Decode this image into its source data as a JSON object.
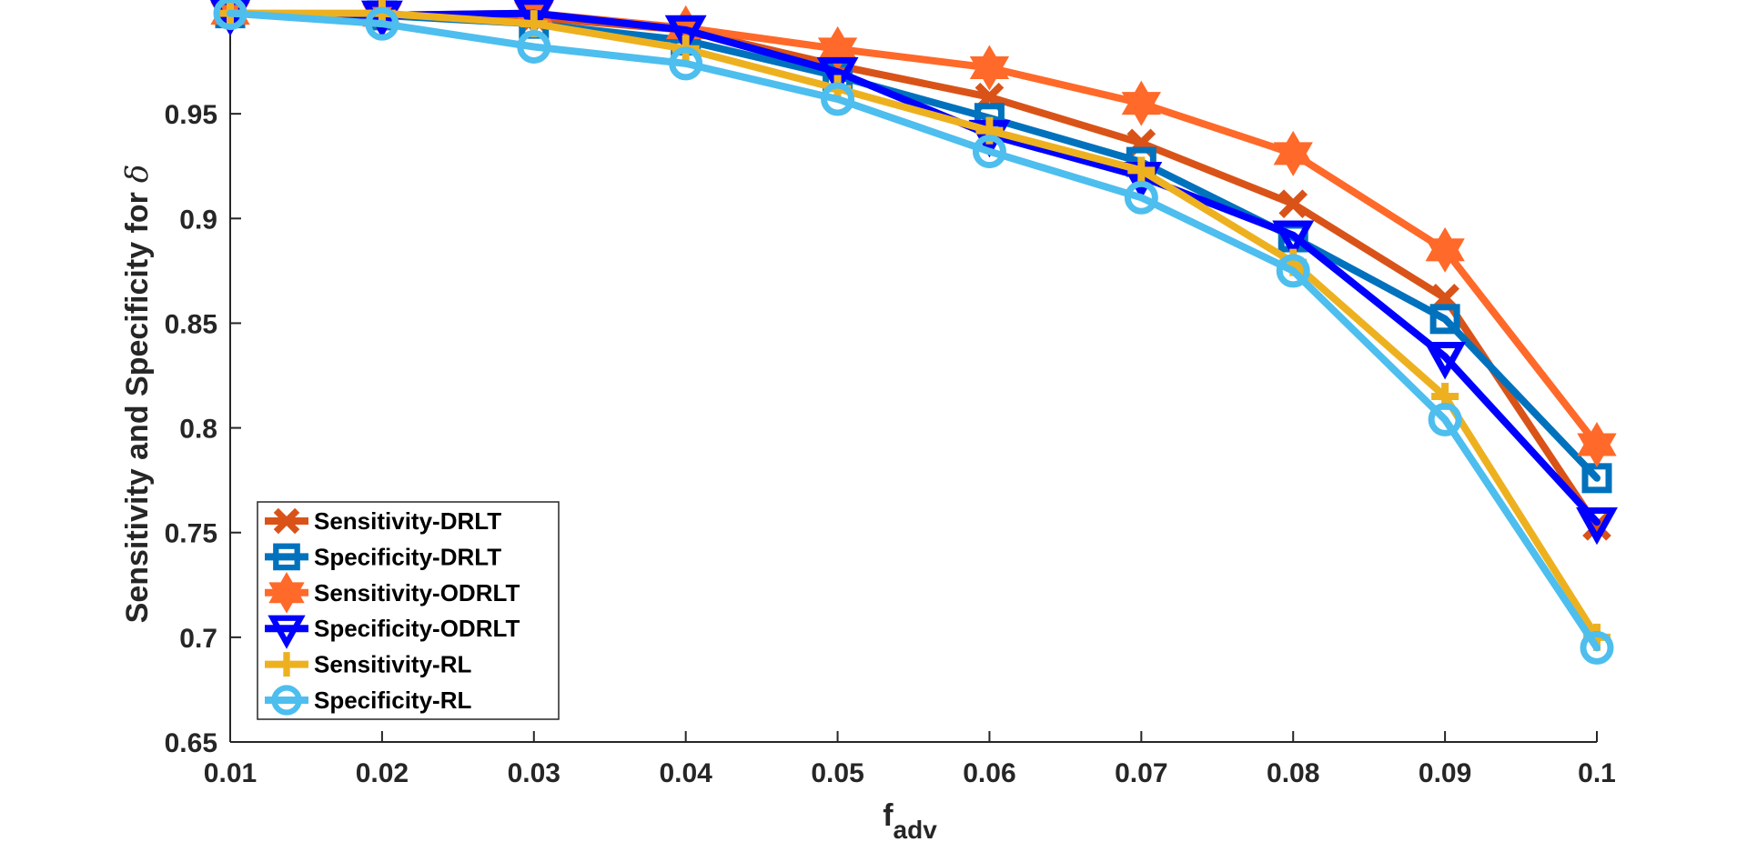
{
  "chart_data": {
    "type": "line",
    "title": "",
    "xlabel": "f",
    "xlabel_sub": "adv",
    "ylabel": "Sensitivity and Specificity for",
    "ylabel_symbol": "δ",
    "x": [
      0.01,
      0.02,
      0.03,
      0.04,
      0.05,
      0.06,
      0.07,
      0.08,
      0.09,
      0.1
    ],
    "xlim": [
      0.01,
      0.1
    ],
    "ylim": [
      0.65,
      1.0
    ],
    "xticks": [
      "0.01",
      "0.02",
      "0.03",
      "0.04",
      "0.05",
      "0.06",
      "0.07",
      "0.08",
      "0.09",
      "0.1"
    ],
    "yticks": [
      "0.65",
      "0.7",
      "0.75",
      "0.8",
      "0.85",
      "0.9",
      "0.95"
    ],
    "ytick_values": [
      0.65,
      0.7,
      0.75,
      0.8,
      0.85,
      0.9,
      0.95
    ],
    "grid": false,
    "legend_position": "bottom-left",
    "series": [
      {
        "name": "Sensitivity-DRLT",
        "color": "#D95319",
        "marker": "x",
        "values": [
          0.998,
          0.997,
          0.996,
          0.99,
          0.973,
          0.958,
          0.936,
          0.907,
          0.862,
          0.753
        ]
      },
      {
        "name": "Specificity-DRLT",
        "color": "#0072BD",
        "marker": "square",
        "values": [
          0.998,
          0.997,
          0.993,
          0.985,
          0.968,
          0.948,
          0.927,
          0.891,
          0.852,
          0.776
        ]
      },
      {
        "name": "Sensitivity-ODRLT",
        "color": "#FF6929",
        "marker": "hexagram",
        "values": [
          0.998,
          0.997,
          0.998,
          0.991,
          0.981,
          0.972,
          0.955,
          0.931,
          0.885,
          0.792
        ]
      },
      {
        "name": "Specificity-ODRLT",
        "color": "#0000FF",
        "marker": "triangle-down",
        "values": [
          0.998,
          0.997,
          0.998,
          0.99,
          0.97,
          0.94,
          0.92,
          0.892,
          0.834,
          0.755
        ]
      },
      {
        "name": "Sensitivity-RL",
        "color": "#EDB120",
        "marker": "plus",
        "values": [
          0.998,
          0.998,
          0.993,
          0.981,
          0.962,
          0.942,
          0.923,
          0.879,
          0.815,
          0.7
        ]
      },
      {
        "name": "Specificity-RL",
        "color": "#4DBEEE",
        "marker": "circle",
        "values": [
          0.998,
          0.993,
          0.982,
          0.974,
          0.957,
          0.932,
          0.91,
          0.875,
          0.804,
          0.695
        ]
      }
    ]
  }
}
